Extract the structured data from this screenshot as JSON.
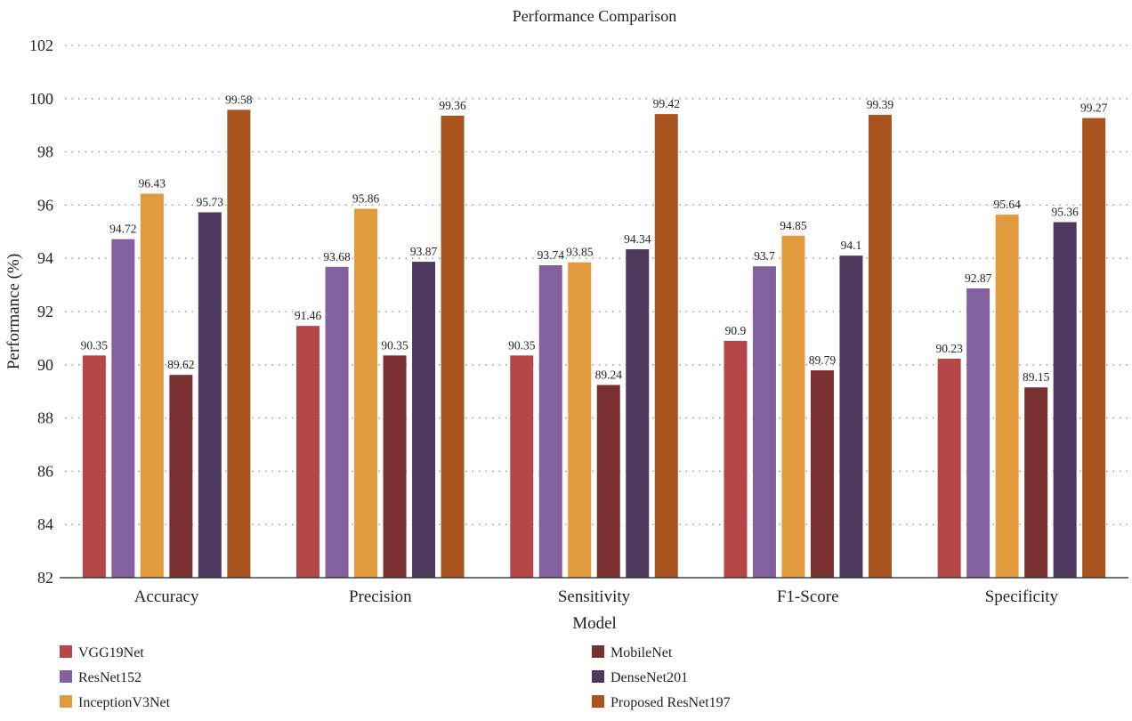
{
  "chart_data": {
    "type": "bar",
    "title": "Performance Comparison",
    "xlabel": "Model",
    "ylabel": "Performance (%)",
    "ylim": [
      82,
      102
    ],
    "yticks": [
      82,
      84,
      86,
      88,
      90,
      92,
      94,
      96,
      98,
      100,
      102
    ],
    "grid": true,
    "legend_position": "bottom",
    "categories": [
      "Accuracy",
      "Precision",
      "Sensitivity",
      "F1-Score",
      "Specificity"
    ],
    "series": [
      {
        "name": "VGG19Net",
        "color": "#b54748",
        "values": [
          90.35,
          91.46,
          90.35,
          90.9,
          90.23
        ],
        "labels": [
          "90.35",
          "91.46",
          "90.35",
          "90.9",
          "90.23"
        ]
      },
      {
        "name": "ResNet152",
        "color": "#8360a0",
        "values": [
          94.72,
          93.68,
          93.74,
          93.7,
          92.87
        ],
        "labels": [
          "94.72",
          "93.68",
          "93.74",
          "93.7",
          "92.87"
        ]
      },
      {
        "name": "InceptionV3Net",
        "color": "#e29a3f",
        "values": [
          96.43,
          95.86,
          93.85,
          94.85,
          95.64
        ],
        "labels": [
          "96.43",
          "95.86",
          "93.85",
          "94.85",
          "95.64"
        ]
      },
      {
        "name": "MobileNet",
        "color": "#7a3030",
        "values": [
          89.62,
          90.35,
          89.24,
          89.79,
          89.15
        ],
        "labels": [
          "89.62",
          "90.35",
          "89.24",
          "89.79",
          "89.15"
        ]
      },
      {
        "name": "DenseNet201",
        "color": "#4e395e",
        "values": [
          95.73,
          93.87,
          94.34,
          94.1,
          95.36
        ],
        "labels": [
          "95.73",
          "93.87",
          "94.34",
          "94.1",
          "95.36"
        ]
      },
      {
        "name": "Proposed ResNet197",
        "color": "#a9531e",
        "values": [
          99.58,
          99.36,
          99.42,
          99.39,
          99.27
        ],
        "labels": [
          "99.58",
          "99.36",
          "99.42",
          "99.39",
          "99.27"
        ]
      }
    ]
  }
}
